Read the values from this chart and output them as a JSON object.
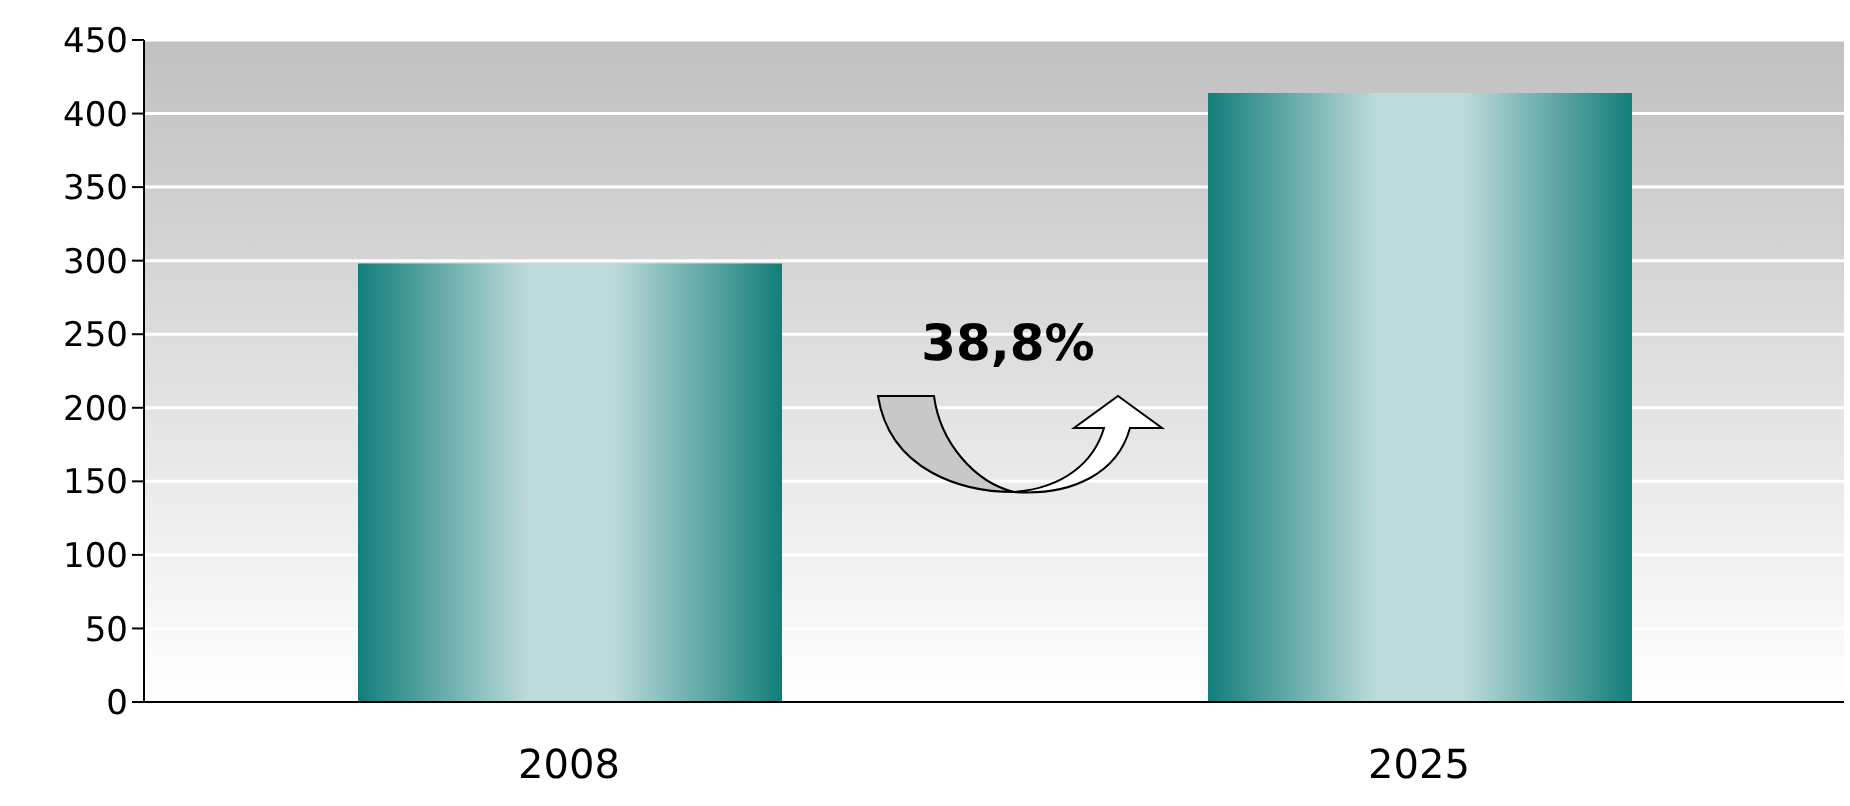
{
  "chart_data": {
    "type": "bar",
    "categories": [
      "2008",
      "2025"
    ],
    "values": [
      298,
      414
    ],
    "color": "#127e7a",
    "ylim": [
      0,
      450
    ],
    "yticks": [
      0,
      50,
      100,
      150,
      200,
      250,
      300,
      350,
      400,
      450
    ],
    "grid": "y",
    "annotations": [
      "38,8%"
    ]
  }
}
